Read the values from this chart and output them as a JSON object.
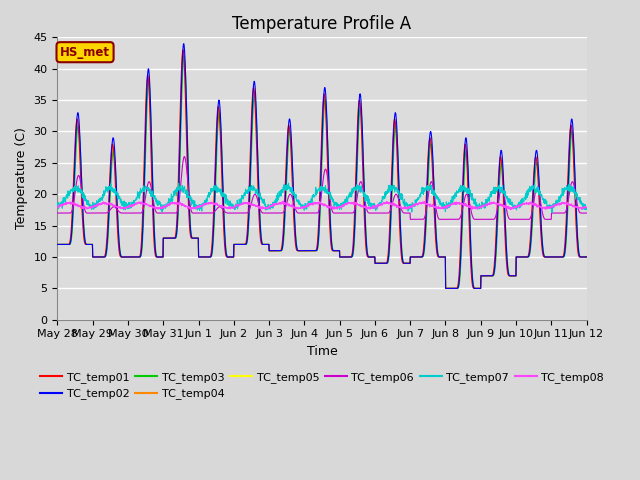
{
  "title": "Temperature Profile A",
  "xlabel": "Time",
  "ylabel": "Temperature (C)",
  "ylim": [
    0,
    45
  ],
  "background_color": "#dcdcdc",
  "plot_bg": "#dcdcdc",
  "annotation_text": "HS_met",
  "annotation_color": "#8B0000",
  "annotation_bg": "#FFD700",
  "series_colors": {
    "TC_temp01": "#FF0000",
    "TC_temp02": "#0000FF",
    "TC_temp03": "#00CC00",
    "TC_temp04": "#FF8800",
    "TC_temp05": "#FFFF00",
    "TC_temp06": "#CC00CC",
    "TC_temp07": "#00CCCC",
    "TC_temp08": "#FF44FF"
  },
  "x_tick_labels": [
    "May 28",
    "May 29",
    "May 30",
    "May 31",
    "Jun 1",
    "Jun 2",
    "Jun 3",
    "Jun 4",
    "Jun 5",
    "Jun 6",
    "Jun 7",
    "Jun 8",
    "Jun 9",
    "Jun 10",
    "Jun 11",
    "Jun 12"
  ],
  "title_fontsize": 12,
  "label_fontsize": 9,
  "tick_fontsize": 8,
  "figwidth": 6.4,
  "figheight": 4.8,
  "dpi": 100
}
